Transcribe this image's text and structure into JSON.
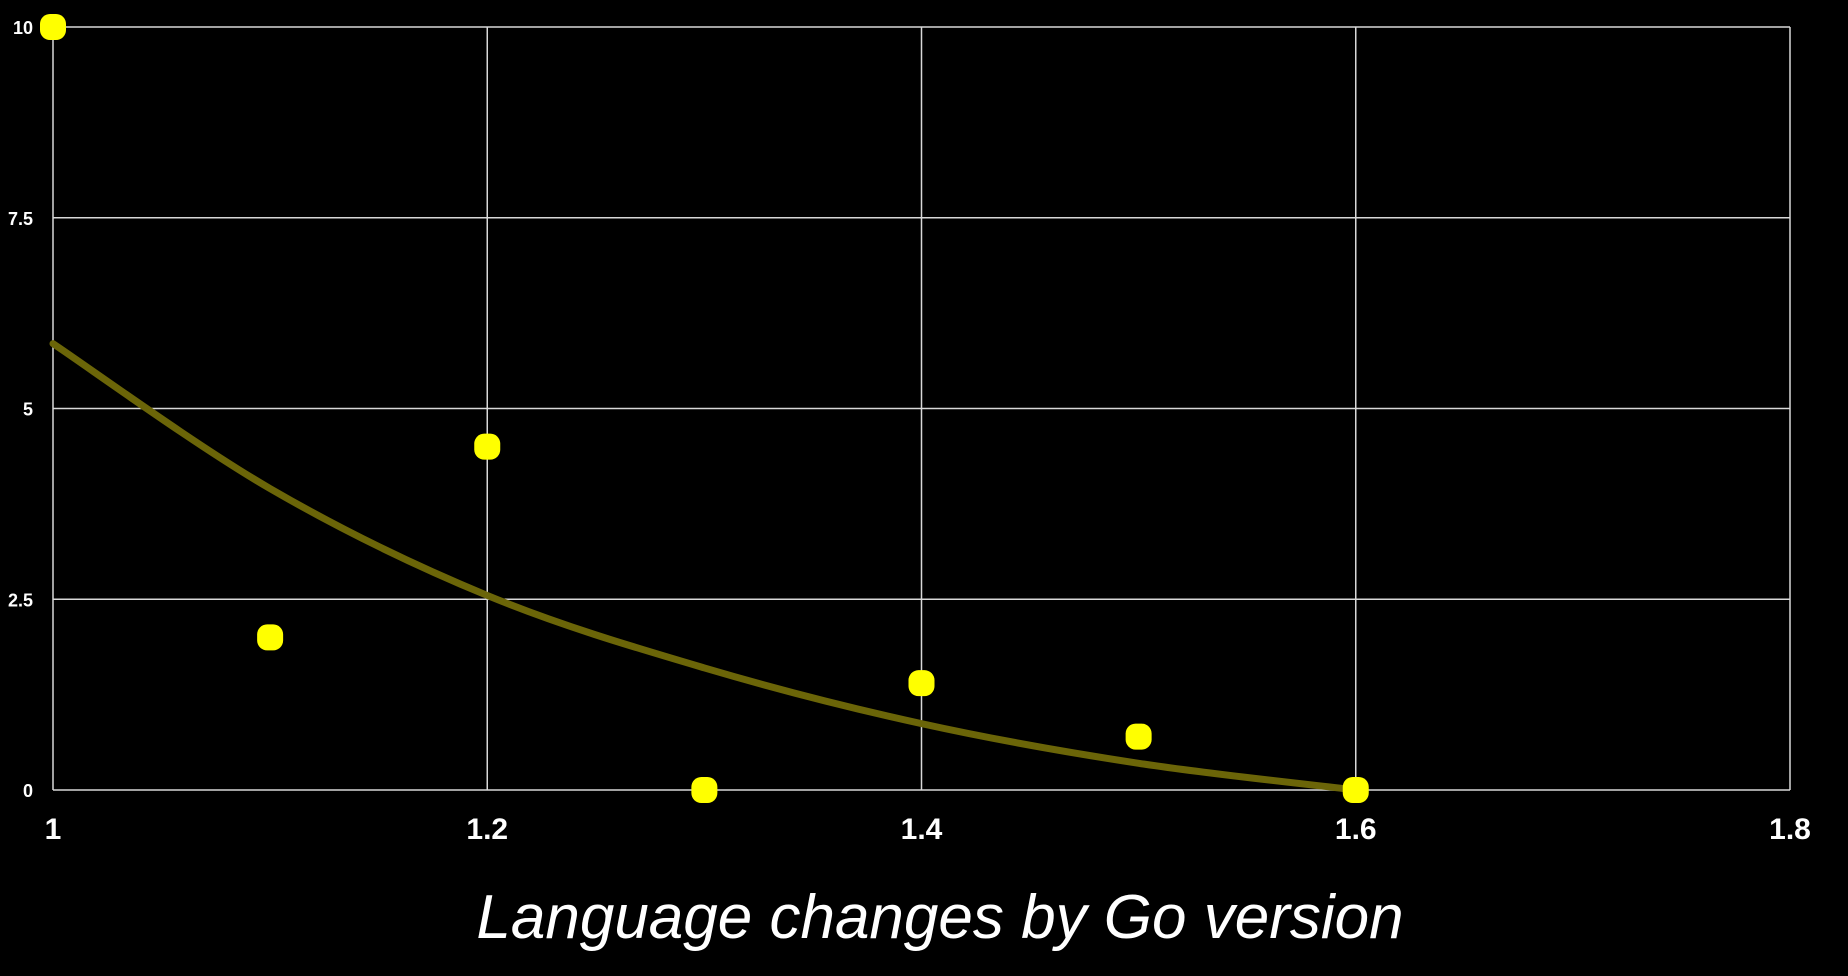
{
  "chart_data": {
    "type": "scatter",
    "title": "Language changes by Go version",
    "xlabel": "",
    "ylabel": "",
    "x_ticks": [
      "1",
      "1.2",
      "1.4",
      "1.6",
      "1.8"
    ],
    "x_tick_values": [
      1.0,
      1.2,
      1.4,
      1.6,
      1.8
    ],
    "y_ticks": [
      "0",
      "2.5",
      "5",
      "7.5",
      "10"
    ],
    "y_tick_values": [
      0,
      2.5,
      5,
      7.5,
      10
    ],
    "xlim": [
      1.0,
      1.8
    ],
    "ylim": [
      0,
      10
    ],
    "grid": true,
    "series": [
      {
        "points": [
          {
            "x": 1.0,
            "y": 10
          },
          {
            "x": 1.1,
            "y": 2
          },
          {
            "x": 1.2,
            "y": 4.5
          },
          {
            "x": 1.3,
            "y": 0
          },
          {
            "x": 1.4,
            "y": 1.4
          },
          {
            "x": 1.5,
            "y": 0.7
          },
          {
            "x": 1.6,
            "y": 0
          }
        ],
        "color": "#ffff00"
      }
    ],
    "trendline": {
      "points": [
        {
          "x": 1.0,
          "y": 5.85
        },
        {
          "x": 1.1,
          "y": 3.95
        },
        {
          "x": 1.2,
          "y": 2.55
        },
        {
          "x": 1.3,
          "y": 1.6
        },
        {
          "x": 1.4,
          "y": 0.87
        },
        {
          "x": 1.5,
          "y": 0.35
        },
        {
          "x": 1.6,
          "y": 0
        }
      ],
      "color": "#6b6508"
    },
    "background_color": "#000000",
    "grid_color": "#d8d8d8",
    "text_color": "#ffffff"
  }
}
